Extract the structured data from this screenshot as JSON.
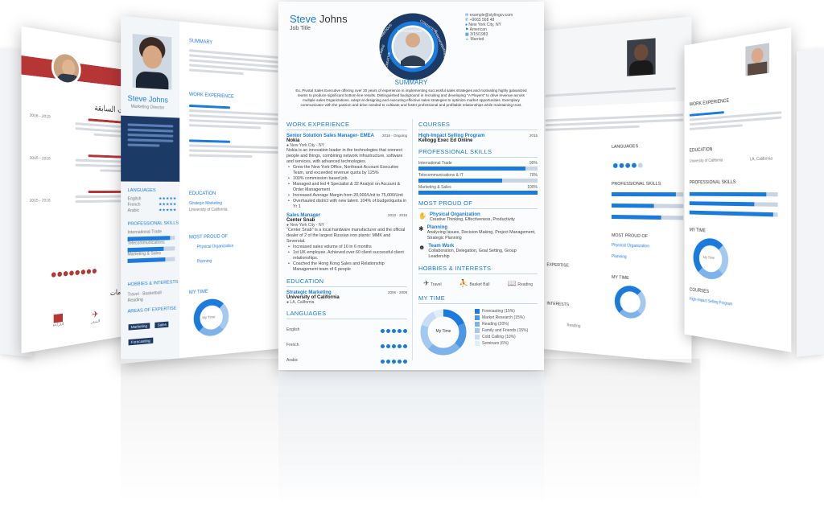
{
  "colors": {
    "accent": "#1a7bdc",
    "ink": "#222222",
    "muted": "#c9d5e2"
  },
  "main_resume": {
    "first_name": "Steve",
    "last_name": "Johns",
    "job_title": "Job Title",
    "badges": [
      "RELIABLE",
      "AMBITIOUS",
      "HONEST",
      "CONSISTENT",
      "HARDWORKING",
      "SMART",
      "PROFESSIONAL",
      "CREATIVE"
    ],
    "contact": {
      "email": "example@stylingcv.com",
      "phone": "+9665 568 48",
      "location": "New York City, NY",
      "nationality": "American",
      "birth": "3/15/1983",
      "status": "Married"
    },
    "summary_title": "SUMMARY",
    "summary_text": "Ex. Pivotal Sales Executive offering over 20 years of experience in implementing successful sales strategies and motivating highly galvanized teams to produce significant bottom-line results. Distinguished background in recruiting and developing \"A Players\" to drive revenue across multiple sales Organizations. Adept at designing and executing effective sales strategies to optimize market opportunities. Exemplary communicator with the passion and drive needed to cultivate and foster professional and profitable relationships while maintaining trust.",
    "work_title": "WORK EXPERIENCE",
    "jobs": [
      {
        "title": "Senior Solution Sales Manager- EMEA",
        "dates": "2016 - Ongoing",
        "employer": "Nokia",
        "location": "New York City - NY",
        "desc": "Nokia is an innovation leader in the technologies that connect people and things, combining network infrastructure, software and services, with advanced technologies.",
        "bullets": [
          "Grew the New York Office, Northeast Account Executive Team, and exceeded revenue quota by 125%",
          "100% commission based job.",
          "Managed and led 4 Specialist & 32 Analyst on Account & Order Management",
          "Increased Average Margin from 20,000/Unit to 75,000/Unit",
          "Overhauled district with new talent. 104% of budget/quota in Yr 1"
        ]
      },
      {
        "title": "Sales Manager",
        "dates": "2013 - 2016",
        "employer": "Center Snab",
        "location": "New York City - NY",
        "desc": "\"Center Snab\" is a local hardware manufacturer and the official dealer of 2 of the largest Russian iron plants: MMK and Severstal.",
        "bullets": [
          "Increased sales volume of 10 in 6 months",
          "1st UK employee. Achieved over 60 client successful client relationships.",
          "Coached the Hong Kong Sales and Relationship Management team of 6 people"
        ]
      }
    ],
    "education_title": "EDUCATION",
    "education": {
      "program": "Strategic Marketing",
      "dates": "2006 - 2009",
      "school": "University of California",
      "location": "LA, California"
    },
    "languages_title": "LANGUAGES",
    "languages": [
      {
        "name": "English",
        "level": 5
      },
      {
        "name": "French",
        "level": 5
      },
      {
        "name": "Arabic",
        "level": 5
      }
    ],
    "courses_title": "COURSES",
    "course": {
      "name": "High-Impact Selling Program",
      "dates": "2016",
      "org": "Kellogg Exec Ed Online"
    },
    "skills_title": "PROFESSIONAL SKILLS",
    "skills": [
      {
        "name": "International Trade",
        "percent": 90,
        "label": "90%"
      },
      {
        "name": "Telecommunications & IT",
        "percent": 70,
        "label": "70%"
      },
      {
        "name": "Marketing & Sales",
        "percent": 100,
        "label": "100%"
      }
    ],
    "proud_title": "MOST PROUD OF",
    "proud": [
      {
        "title": "Physical Organization",
        "desc": "Creative Thinking, Effectiveness, Productivity"
      },
      {
        "title": "Planning",
        "desc": "Analyzing Issues, Decision Making, Project Management, Strategic Planning"
      },
      {
        "title": "Team Work",
        "desc": "Collaboration, Delegation, Goal Setting, Group Leadership"
      }
    ],
    "hobbies_title": "HOBBIES & INTERESTS",
    "hobbies": [
      {
        "label": "Travel",
        "icon": "airplane-icon"
      },
      {
        "label": "Basket Ball",
        "icon": "basketball-icon"
      },
      {
        "label": "Reading",
        "icon": "book-icon"
      }
    ],
    "time_title": "MY TIME",
    "time_center": "My Time",
    "time": [
      {
        "label": "Forecasting (15%)",
        "value": 15,
        "color": "#1a7bdc"
      },
      {
        "label": "Market Research (15%)",
        "value": 15,
        "color": "#4b97e3"
      },
      {
        "label": "Reading (20%)",
        "value": 20,
        "color": "#7db3ea"
      },
      {
        "label": "Family and Friends (15%)",
        "value": 15,
        "color": "#a3c9f0"
      },
      {
        "label": "Cold Calling (10%)",
        "value": 10,
        "color": "#c6ddf5"
      },
      {
        "label": "Seminars (6%)",
        "value": 6,
        "color": "#e1edf9"
      }
    ]
  },
  "left_resume": {
    "name": "Steve Johns",
    "title": "Marketing Director",
    "summary_title": "SUMMARY",
    "work_title": "WORK EXPERIENCE",
    "languages_title": "LANGUAGES",
    "languages": [
      {
        "name": "English",
        "level": 5
      },
      {
        "name": "French",
        "level": 5
      },
      {
        "name": "Arabic",
        "level": 5
      }
    ],
    "skills_title": "PROFESSIONAL SKILLS",
    "skills": [
      {
        "name": "International Trade",
        "percent": 90
      },
      {
        "name": "Telecommunications",
        "percent": 75
      },
      {
        "name": "Marketing & Sales",
        "percent": 80
      }
    ],
    "education_title": "EDUCATION",
    "education_program": "Strategic Marketing",
    "education_school": "University of California",
    "proud_title": "MOST PROUD OF",
    "proud": [
      "Physical Organization",
      "Planning"
    ],
    "hobbies_title": "HOBBIES & INTERESTS",
    "hobbies": [
      "Travel",
      "Basketball",
      "Reading"
    ],
    "expertise_title": "AREAS OF EXPERTISE",
    "expertise_tags": [
      "Marketing",
      "Sales",
      "Forecasting"
    ],
    "time_title": "MY TIME",
    "time_center": "My Time"
  },
  "right_resume": {
    "languages_title": "LANGUAGES",
    "skills_title": "PROFESSIONAL SKILLS",
    "proud_title": "MOST PROUD OF",
    "proud": [
      "Physical Organization",
      "Planning"
    ],
    "time_title": "MY TIME",
    "expertise_title": "EXPERTISE",
    "interests_title": "INTERESTS",
    "hobby": "Reading"
  },
  "far_right_resume": {
    "work_title": "WORK EXPERIENCE",
    "education_title": "EDUCATION",
    "education_school": "University of California",
    "education_location": "LA, California",
    "skills_title": "PROFESSIONAL SKILLS",
    "time_title": "MY TIME",
    "time_center": "My Time",
    "courses_title": "COURSES",
    "course_name": "High-Impact Selling Program"
  },
  "arabic_resume": {
    "heading": "خبرات السابقة",
    "years": [
      "2016 - 2019",
      "2015 - 2016",
      "2015 - 2016"
    ],
    "hobbies_title": "اهتمامات",
    "hobbies": [
      "القراءة",
      "السفر"
    ]
  }
}
